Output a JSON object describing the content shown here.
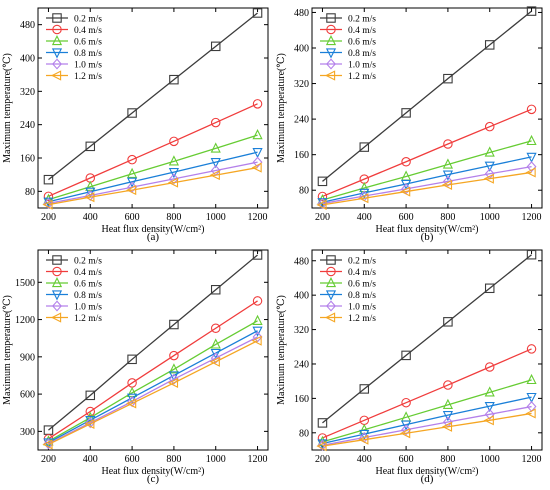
{
  "chart_data": [
    {
      "type": "line",
      "caption": "(a)",
      "xlabel": "Heat flux density(W/cm²)",
      "ylabel": "Maximum temperature(℃)",
      "x": [
        200,
        400,
        600,
        800,
        1000,
        1200
      ],
      "xticks": [
        "200",
        "400",
        "600",
        "800",
        "1000",
        "1200"
      ],
      "xlim": [
        150,
        1250
      ],
      "ylim": [
        40,
        520
      ],
      "yticks": [
        80,
        160,
        240,
        320,
        400,
        480
      ],
      "legend_position": "top-left",
      "series": [
        {
          "name": "0.2 m/s",
          "marker": "square",
          "values": [
            108,
            188,
            268,
            348,
            428,
            508
          ]
        },
        {
          "name": "0.4 m/s",
          "marker": "circle",
          "values": [
            68,
            112,
            156,
            200,
            245,
            290
          ]
        },
        {
          "name": "0.6 m/s",
          "marker": "triangle-up",
          "values": [
            60,
            91,
            122,
            152,
            183,
            215
          ]
        },
        {
          "name": "0.8 m/s",
          "marker": "triangle-down",
          "values": [
            55,
            79,
            103,
            126,
            150,
            174
          ]
        },
        {
          "name": "1.0 m/s",
          "marker": "diamond",
          "values": [
            51,
            70,
            90,
            110,
            130,
            150
          ]
        },
        {
          "name": "1.2 m/s",
          "marker": "triangle-left",
          "values": [
            48,
            66,
            83,
            101,
            119,
            137
          ]
        }
      ]
    },
    {
      "type": "line",
      "caption": "(b)",
      "xlabel": "Heat flux density(W/cm²)",
      "ylabel": "Maximum temperature(℃)",
      "x": [
        200,
        400,
        600,
        800,
        1000,
        1200
      ],
      "xticks": [
        "200",
        "400",
        "600",
        "800",
        "1000",
        "1200"
      ],
      "xlim": [
        150,
        1250
      ],
      "ylim": [
        40,
        490
      ],
      "yticks": [
        80,
        160,
        240,
        320,
        400,
        480
      ],
      "legend_position": "top-left",
      "series": [
        {
          "name": "0.2 m/s",
          "marker": "square",
          "values": [
            100,
            177,
            254,
            331,
            407,
            483
          ]
        },
        {
          "name": "0.4 m/s",
          "marker": "circle",
          "values": [
            66,
            105,
            144,
            184,
            223,
            262
          ]
        },
        {
          "name": "0.6 m/s",
          "marker": "triangle-up",
          "values": [
            58,
            85,
            111,
            138,
            165,
            191
          ]
        },
        {
          "name": "0.8 m/s",
          "marker": "triangle-down",
          "values": [
            53,
            74,
            94,
            115,
            135,
            155
          ]
        },
        {
          "name": "1.0 m/s",
          "marker": "diamond",
          "values": [
            50,
            67,
            83,
            100,
            117,
            133
          ]
        },
        {
          "name": "1.2 m/s",
          "marker": "triangle-left",
          "values": [
            47,
            62,
            77,
            92,
            106,
            120
          ]
        }
      ]
    },
    {
      "type": "line",
      "caption": "(c)",
      "xlabel": "Heat flux density(W/cm²)",
      "ylabel": "Maximum temperature(℃)",
      "x": [
        200,
        400,
        600,
        800,
        1000,
        1200
      ],
      "xticks": [
        "200",
        "400",
        "600",
        "800",
        "1000",
        "1200"
      ],
      "xlim": [
        150,
        1250
      ],
      "ylim": [
        150,
        1760
      ],
      "yticks": [
        300,
        600,
        900,
        1200,
        1500
      ],
      "legend_position": "top-left",
      "series": [
        {
          "name": "0.2 m/s",
          "marker": "square",
          "values": [
            310,
            590,
            880,
            1160,
            1440,
            1720
          ]
        },
        {
          "name": "0.4 m/s",
          "marker": "circle",
          "values": [
            240,
            460,
            690,
            910,
            1130,
            1350
          ]
        },
        {
          "name": "0.6 m/s",
          "marker": "triangle-up",
          "values": [
            220,
            410,
            610,
            800,
            1000,
            1190
          ]
        },
        {
          "name": "0.8 m/s",
          "marker": "triangle-down",
          "values": [
            210,
            390,
            570,
            750,
            930,
            1110
          ]
        },
        {
          "name": "1.0 m/s",
          "marker": "diamond",
          "values": [
            200,
            370,
            540,
            720,
            890,
            1060
          ]
        },
        {
          "name": "1.2 m/s",
          "marker": "triangle-left",
          "values": [
            195,
            360,
            525,
            690,
            860,
            1030
          ]
        }
      ]
    },
    {
      "type": "line",
      "caption": "(d)",
      "xlabel": "Heat flux density(W/cm²)",
      "ylabel": "Maximum temperature(℃)",
      "x": [
        200,
        400,
        600,
        800,
        1000,
        1200
      ],
      "xticks": [
        "200",
        "400",
        "600",
        "800",
        "1000",
        "1200"
      ],
      "xlim": [
        150,
        1250
      ],
      "ylim": [
        40,
        505
      ],
      "yticks": [
        80,
        160,
        240,
        320,
        400,
        480
      ],
      "legend_position": "top-left",
      "series": [
        {
          "name": "0.2 m/s",
          "marker": "square",
          "values": [
            103,
            182,
            260,
            338,
            416,
            494
          ]
        },
        {
          "name": "0.4 m/s",
          "marker": "circle",
          "values": [
            68,
            109,
            150,
            191,
            233,
            275
          ]
        },
        {
          "name": "0.6 m/s",
          "marker": "triangle-up",
          "values": [
            59,
            87,
            116,
            145,
            174,
            203
          ]
        },
        {
          "name": "0.8 m/s",
          "marker": "triangle-down",
          "values": [
            55,
            77,
            99,
            121,
            142,
            163
          ]
        },
        {
          "name": "1.0 m/s",
          "marker": "diamond",
          "values": [
            51,
            69,
            87,
            105,
            123,
            141
          ]
        },
        {
          "name": "1.2 m/s",
          "marker": "triangle-left",
          "values": [
            49,
            64,
            79,
            94,
            109,
            125
          ]
        }
      ]
    }
  ],
  "colors": {
    "0.2 m/s": "#3c3c3c",
    "0.4 m/s": "#f03c3c",
    "0.6 m/s": "#66cc33",
    "0.8 m/s": "#1a7fd8",
    "1.0 m/s": "#b480ea",
    "1.2 m/s": "#f5a623"
  }
}
